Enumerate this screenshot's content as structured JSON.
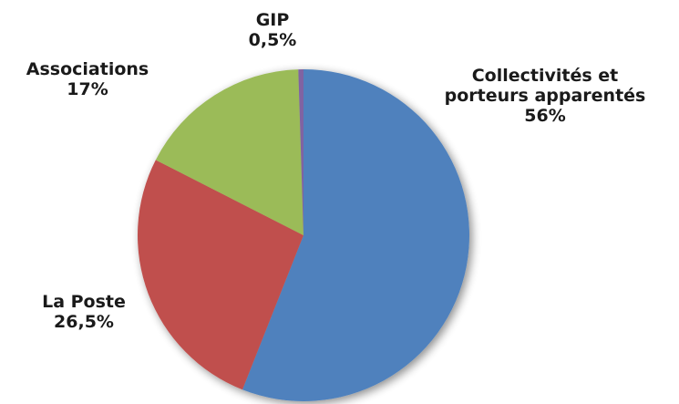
{
  "chart_data": {
    "type": "pie",
    "title": "",
    "slices": [
      {
        "category": "Collectivités et porteurs apparentés",
        "value": 56,
        "value_label": "56%",
        "label_lines": [
          "Collectivités et",
          "porteurs apparentés",
          "56%"
        ],
        "color": "#4f81bd"
      },
      {
        "category": "La Poste",
        "value": 26.5,
        "value_label": "26,5%",
        "label_lines": [
          "La Poste",
          "26,5%"
        ],
        "color": "#c0504d"
      },
      {
        "category": "Associations",
        "value": 17,
        "value_label": "17%",
        "label_lines": [
          "Associations",
          "17%"
        ],
        "color": "#9bbb59"
      },
      {
        "category": "GIP",
        "value": 0.5,
        "value_label": "0,5%",
        "label_lines": [
          "GIP",
          "0,5%"
        ],
        "color": "#8064a2"
      }
    ],
    "start_angle_deg": 0,
    "direction": "clockwise",
    "legend": "none",
    "grid": false
  }
}
